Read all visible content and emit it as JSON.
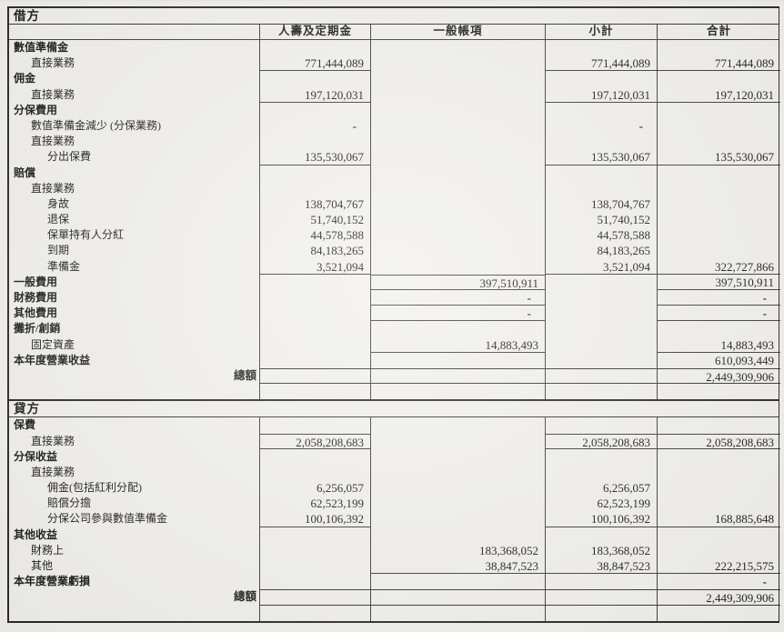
{
  "document": {
    "kind": "scanned-insurance-revenue-account",
    "currency_format": "thousands-separated"
  },
  "colors": {
    "paper": "#f1f0ec",
    "ink": "#181818",
    "rule_line": "#3a3a3a"
  },
  "columns": [
    "",
    "人壽及定期金",
    "一般帳項",
    "小計",
    "合計"
  ],
  "sections": [
    {
      "title": "借方",
      "rows": [
        {
          "label": "數值準備金",
          "level": 0,
          "bold": 1
        },
        {
          "label": "直接業務",
          "level": 1,
          "cells": [
            "771,444,089",
            "",
            "771,444,089",
            "771,444,089"
          ],
          "u": [
            1,
            0,
            1,
            1
          ]
        },
        {
          "label": "佣金",
          "level": 0,
          "bold": 1
        },
        {
          "label": "直接業務",
          "level": 1,
          "cells": [
            "197,120,031",
            "",
            "197,120,031",
            "197,120,031"
          ],
          "u": [
            1,
            0,
            1,
            1
          ]
        },
        {
          "label": "分保費用",
          "level": 0,
          "bold": 1
        },
        {
          "label": "數值準備金減少 (分保業務)",
          "level": 1,
          "cells": [
            "-",
            "",
            "-",
            ""
          ]
        },
        {
          "label": "直接業務",
          "level": 1
        },
        {
          "label": "分出保費",
          "level": 2,
          "cells": [
            "135,530,067",
            "",
            "135,530,067",
            "135,530,067"
          ],
          "u": [
            1,
            0,
            1,
            1
          ]
        },
        {
          "label": "賠償",
          "level": 0,
          "bold": 1
        },
        {
          "label": "直接業務",
          "level": 1
        },
        {
          "label": "身故",
          "level": 2,
          "cells": [
            "138,704,767",
            "",
            "138,704,767",
            ""
          ]
        },
        {
          "label": "退保",
          "level": 2,
          "cells": [
            "51,740,152",
            "",
            "51,740,152",
            ""
          ]
        },
        {
          "label": "保單持有人分紅",
          "level": 2,
          "cells": [
            "44,578,588",
            "",
            "44,578,588",
            ""
          ]
        },
        {
          "label": "到期",
          "level": 2,
          "cells": [
            "84,183,265",
            "",
            "84,183,265",
            ""
          ]
        },
        {
          "label": "準備金",
          "level": 2,
          "cells": [
            "3,521,094",
            "",
            "3,521,094",
            "322,727,866"
          ],
          "u": [
            1,
            0,
            1,
            1
          ]
        },
        {
          "label": "一般費用",
          "level": 0,
          "bold": 1,
          "cells": [
            "",
            "397,510,911",
            "",
            "397,510,911"
          ],
          "u": [
            0,
            1,
            0,
            1
          ],
          "t": [
            0,
            1,
            0,
            0
          ]
        },
        {
          "label": "財務費用",
          "level": 0,
          "bold": 1,
          "cells": [
            "",
            "-",
            "",
            "-"
          ],
          "u": [
            0,
            1,
            0,
            1
          ]
        },
        {
          "label": "其他費用",
          "level": 0,
          "bold": 1,
          "cells": [
            "",
            "-",
            "",
            "-"
          ],
          "u": [
            0,
            1,
            0,
            1
          ]
        },
        {
          "label": "攤折/創銷",
          "level": 0,
          "bold": 1
        },
        {
          "label": "固定資產",
          "level": 1,
          "cells": [
            "",
            "14,883,493",
            "",
            "14,883,493"
          ],
          "u": [
            0,
            1,
            0,
            1
          ]
        },
        {
          "label": "本年度營業收益",
          "level": 0,
          "bold": 1,
          "cells": [
            "",
            "",
            "",
            "610,093,449"
          ]
        },
        {
          "label": "總額",
          "kind": "total",
          "cells": [
            "",
            "",
            "",
            "2,449,309,906"
          ]
        },
        {
          "kind": "empty"
        }
      ]
    },
    {
      "title": "貸方",
      "rows": [
        {
          "label": "保費",
          "level": 0,
          "bold": 1
        },
        {
          "label": "直接業務",
          "level": 1,
          "cells": [
            "2,058,208,683",
            "",
            "2,058,208,683",
            "2,058,208,683"
          ],
          "u": [
            1,
            0,
            1,
            1
          ],
          "t": [
            1,
            0,
            1,
            1
          ]
        },
        {
          "label": "分保收益",
          "level": 0,
          "bold": 1
        },
        {
          "label": "直接業務",
          "level": 1
        },
        {
          "label": "佣金(包括紅利分配)",
          "level": 2,
          "cells": [
            "6,256,057",
            "",
            "6,256,057",
            ""
          ]
        },
        {
          "label": "賠償分擔",
          "level": 2,
          "cells": [
            "62,523,199",
            "",
            "62,523,199",
            ""
          ]
        },
        {
          "label": "分保公司參與數值準備金",
          "level": 2,
          "cells": [
            "100,106,392",
            "",
            "100,106,392",
            "168,885,648"
          ],
          "u": [
            1,
            0,
            1,
            1
          ]
        },
        {
          "label": "其他收益",
          "level": 0,
          "bold": 1
        },
        {
          "label": "財務上",
          "level": 1,
          "cells": [
            "",
            "183,368,052",
            "183,368,052",
            ""
          ]
        },
        {
          "label": "其他",
          "level": 1,
          "cells": [
            "",
            "38,847,523",
            "38,847,523",
            "222,215,575"
          ],
          "u": [
            0,
            1,
            1,
            1
          ]
        },
        {
          "label": "本年度營業虧損",
          "level": 0,
          "bold": 1,
          "cells": [
            "",
            "",
            "",
            "-"
          ]
        },
        {
          "label": "總額",
          "kind": "total",
          "cells": [
            "",
            "",
            "",
            "2,449,309,906"
          ]
        },
        {
          "kind": "empty"
        }
      ]
    }
  ]
}
